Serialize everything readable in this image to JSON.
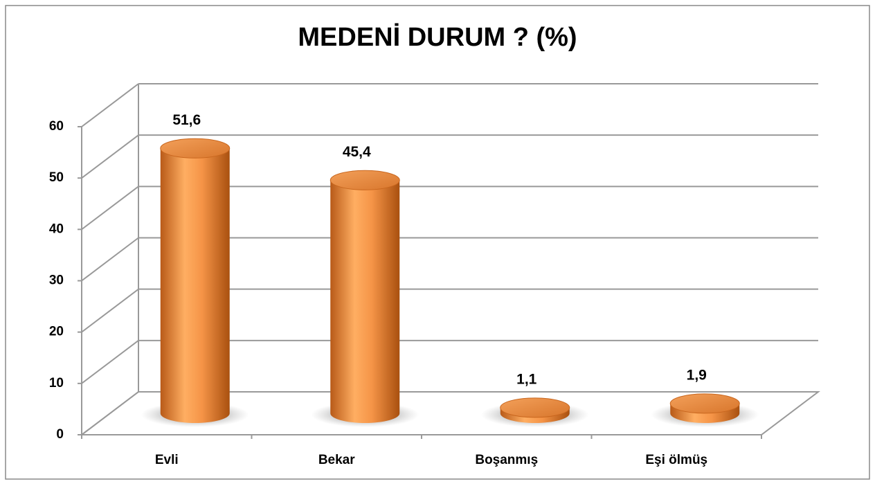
{
  "chart_data": {
    "type": "bar",
    "title": "MEDENİ DURUM ? (%)",
    "categories": [
      "Evli",
      "Bekar",
      "Boşanmış",
      "Eşi ölmüş"
    ],
    "values": [
      51.6,
      45.4,
      1.1,
      1.9
    ],
    "value_labels": [
      "51,6",
      "45,4",
      "1,1",
      "1,9"
    ],
    "color": "#e8843a",
    "ylim": [
      0,
      60
    ],
    "yticks": [
      0,
      10,
      20,
      30,
      40,
      50,
      60
    ],
    "grid": true
  }
}
